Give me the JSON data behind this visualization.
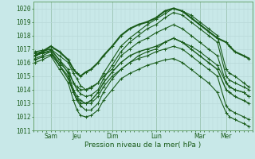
{
  "title": "Pression niveau de la mer( hPa )",
  "bg_color": "#c8e8e8",
  "grid_color_major": "#b8d8d8",
  "grid_color_minor": "#cce4e4",
  "line_color": "#1a5c1a",
  "ylim": [
    1011,
    1020.5
  ],
  "yticks": [
    1011,
    1012,
    1013,
    1014,
    1015,
    1016,
    1017,
    1018,
    1019,
    1020
  ],
  "xlim": [
    0.0,
    12.5
  ],
  "xtick_positions": [
    1.0,
    2.5,
    4.5,
    7.0,
    9.5,
    11.0
  ],
  "xtick_labels": [
    "Sam",
    "Jeu",
    "Dim",
    "Lun",
    "Mar",
    "Mer"
  ],
  "vline_positions": [
    1.0,
    4.5,
    7.0,
    9.5,
    11.0
  ],
  "series": [
    [
      0.1,
      1016.7,
      0.5,
      1016.8,
      1.0,
      1017.0,
      1.5,
      1016.5,
      2.0,
      1016.0,
      2.3,
      1015.2,
      2.5,
      1014.8,
      2.7,
      1014.3,
      3.0,
      1014.0,
      3.3,
      1014.1,
      3.7,
      1014.5,
      4.0,
      1015.2,
      4.5,
      1016.2,
      5.0,
      1017.2,
      5.5,
      1017.8,
      6.0,
      1018.3,
      6.5,
      1018.8,
      7.0,
      1019.2,
      7.5,
      1019.6,
      8.0,
      1020.0,
      8.5,
      1019.8,
      9.0,
      1019.5,
      9.5,
      1019.0,
      10.0,
      1018.5,
      10.5,
      1018.0,
      11.0,
      1015.5,
      11.2,
      1015.2,
      11.5,
      1015.0,
      12.0,
      1014.5,
      12.3,
      1014.2
    ],
    [
      0.1,
      1016.5,
      0.5,
      1016.7,
      1.0,
      1016.9,
      1.5,
      1016.2,
      2.0,
      1015.5,
      2.3,
      1014.5,
      2.5,
      1014.0,
      2.7,
      1013.7,
      3.0,
      1013.5,
      3.3,
      1013.6,
      3.7,
      1014.0,
      4.0,
      1014.8,
      4.5,
      1015.8,
      5.0,
      1016.8,
      5.5,
      1017.5,
      6.0,
      1018.0,
      6.5,
      1018.5,
      7.0,
      1018.8,
      7.5,
      1019.3,
      8.0,
      1019.7,
      8.5,
      1019.5,
      9.0,
      1019.0,
      9.5,
      1018.5,
      10.0,
      1018.0,
      10.5,
      1017.5,
      11.0,
      1015.0,
      11.2,
      1014.7,
      11.5,
      1014.5,
      12.0,
      1014.2,
      12.3,
      1014.0
    ],
    [
      0.1,
      1016.3,
      0.5,
      1016.5,
      1.0,
      1016.8,
      1.5,
      1016.0,
      2.0,
      1015.3,
      2.3,
      1014.5,
      2.5,
      1014.2,
      2.7,
      1014.0,
      3.0,
      1014.0,
      3.3,
      1014.2,
      3.7,
      1014.5,
      4.0,
      1015.0,
      4.5,
      1015.5,
      5.0,
      1016.5,
      5.5,
      1017.0,
      6.0,
      1017.5,
      6.5,
      1017.8,
      7.0,
      1018.2,
      7.5,
      1018.5,
      8.0,
      1018.8,
      8.5,
      1018.5,
      9.0,
      1018.0,
      9.5,
      1017.5,
      10.0,
      1017.0,
      10.5,
      1016.5,
      11.0,
      1014.5,
      11.2,
      1014.2,
      11.5,
      1014.0,
      12.0,
      1013.8,
      12.3,
      1013.5
    ],
    [
      0.1,
      1016.5,
      0.5,
      1016.8,
      1.0,
      1017.2,
      1.5,
      1016.8,
      2.0,
      1016.2,
      2.3,
      1015.5,
      2.5,
      1015.2,
      2.7,
      1015.0,
      3.0,
      1015.3,
      3.3,
      1015.5,
      3.7,
      1016.0,
      4.0,
      1016.5,
      4.5,
      1017.2,
      5.0,
      1018.0,
      5.5,
      1018.5,
      6.0,
      1018.8,
      6.5,
      1019.0,
      7.0,
      1019.3,
      7.5,
      1019.8,
      8.0,
      1020.0,
      8.5,
      1019.8,
      9.0,
      1019.3,
      9.5,
      1018.8,
      10.0,
      1018.3,
      10.5,
      1017.8,
      11.0,
      1017.5,
      11.2,
      1017.2,
      11.5,
      1016.8,
      12.0,
      1016.5,
      12.3,
      1016.3
    ],
    [
      0.1,
      1016.2,
      0.5,
      1016.4,
      1.0,
      1016.6,
      1.5,
      1015.8,
      2.0,
      1015.0,
      2.3,
      1013.8,
      2.5,
      1013.2,
      2.7,
      1012.8,
      3.0,
      1012.5,
      3.3,
      1012.5,
      3.7,
      1013.0,
      4.0,
      1013.8,
      4.5,
      1014.8,
      5.0,
      1015.5,
      5.5,
      1016.0,
      6.0,
      1016.3,
      6.5,
      1016.5,
      7.0,
      1016.8,
      7.5,
      1017.0,
      8.0,
      1017.2,
      8.5,
      1017.0,
      9.0,
      1016.5,
      9.5,
      1016.0,
      10.0,
      1015.5,
      10.5,
      1015.0,
      11.0,
      1012.8,
      11.2,
      1012.5,
      11.5,
      1012.3,
      12.0,
      1012.0,
      12.3,
      1011.8
    ],
    [
      0.1,
      1016.0,
      0.5,
      1016.2,
      1.0,
      1016.5,
      1.5,
      1015.5,
      2.0,
      1014.5,
      2.3,
      1013.2,
      2.5,
      1012.5,
      2.7,
      1012.1,
      3.0,
      1012.0,
      3.3,
      1012.1,
      3.7,
      1012.5,
      4.0,
      1013.2,
      4.5,
      1014.0,
      5.0,
      1014.8,
      5.5,
      1015.2,
      6.0,
      1015.5,
      6.5,
      1015.8,
      7.0,
      1016.0,
      7.5,
      1016.2,
      8.0,
      1016.3,
      8.5,
      1016.0,
      9.0,
      1015.5,
      9.5,
      1015.0,
      10.0,
      1014.5,
      10.5,
      1013.8,
      11.0,
      1012.3,
      11.2,
      1012.0,
      11.5,
      1011.8,
      12.0,
      1011.5,
      12.3,
      1011.3
    ],
    [
      0.1,
      1016.8,
      0.5,
      1016.9,
      1.0,
      1017.0,
      1.5,
      1016.2,
      2.0,
      1015.2,
      2.3,
      1014.0,
      2.5,
      1013.5,
      2.7,
      1013.2,
      3.0,
      1013.0,
      3.3,
      1013.0,
      3.7,
      1013.5,
      4.0,
      1014.2,
      4.5,
      1015.0,
      5.0,
      1015.5,
      5.5,
      1016.0,
      6.0,
      1016.5,
      6.5,
      1016.8,
      7.0,
      1017.0,
      7.5,
      1017.5,
      8.0,
      1017.8,
      8.5,
      1017.5,
      9.0,
      1017.2,
      9.5,
      1016.8,
      10.0,
      1016.3,
      10.5,
      1015.8,
      11.0,
      1014.5,
      11.2,
      1014.2,
      11.5,
      1014.0,
      12.0,
      1013.8,
      12.3,
      1013.5
    ],
    [
      0.1,
      1016.5,
      0.5,
      1016.7,
      1.0,
      1016.8,
      1.5,
      1015.8,
      2.0,
      1014.8,
      2.3,
      1013.8,
      2.5,
      1013.3,
      2.7,
      1013.0,
      3.0,
      1013.0,
      3.3,
      1013.2,
      3.7,
      1013.8,
      4.0,
      1014.5,
      4.5,
      1015.3,
      5.0,
      1016.0,
      5.5,
      1016.5,
      6.0,
      1016.8,
      6.5,
      1017.0,
      7.0,
      1017.2,
      7.5,
      1017.5,
      8.0,
      1017.8,
      8.5,
      1017.5,
      9.0,
      1017.0,
      9.5,
      1016.5,
      10.0,
      1016.0,
      10.5,
      1015.5,
      11.0,
      1014.0,
      11.2,
      1013.8,
      11.5,
      1013.5,
      12.0,
      1013.2,
      12.3,
      1013.0
    ]
  ],
  "linewidths": [
    0.8,
    0.8,
    0.8,
    1.5,
    0.8,
    0.8,
    0.8,
    1.0
  ],
  "font_size_tick": 5.5,
  "font_size_label": 6.5
}
